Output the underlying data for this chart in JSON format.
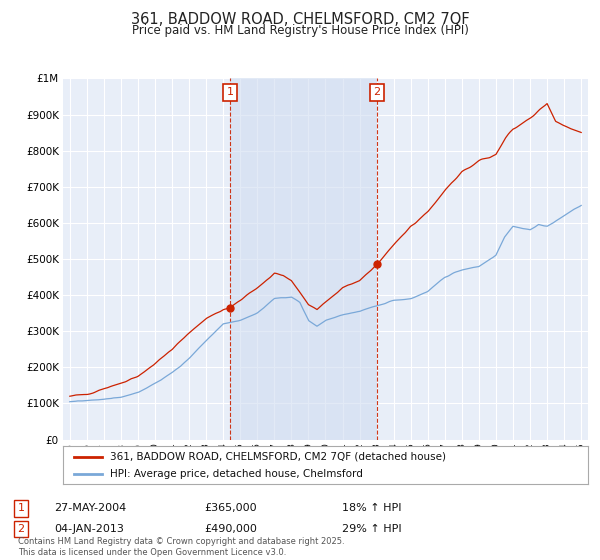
{
  "title": "361, BADDOW ROAD, CHELMSFORD, CM2 7QF",
  "subtitle": "Price paid vs. HM Land Registry's House Price Index (HPI)",
  "background_color": "#ffffff",
  "plot_bg_color": "#e8eef8",
  "grid_color": "#ffffff",
  "shade_color": "#d0dcf0",
  "red_color": "#cc2200",
  "blue_color": "#7aa8d8",
  "marker1_date_label": "27-MAY-2004",
  "marker1_price": "£365,000",
  "marker1_hpi": "18% ↑ HPI",
  "marker2_date_label": "04-JAN-2013",
  "marker2_price": "£490,000",
  "marker2_hpi": "29% ↑ HPI",
  "legend_red": "361, BADDOW ROAD, CHELMSFORD, CM2 7QF (detached house)",
  "legend_blue": "HPI: Average price, detached house, Chelmsford",
  "footer": "Contains HM Land Registry data © Crown copyright and database right 2025.\nThis data is licensed under the Open Government Licence v3.0.",
  "ylim": [
    0,
    1000000
  ],
  "yticks": [
    0,
    100000,
    200000,
    300000,
    400000,
    500000,
    600000,
    700000,
    800000,
    900000,
    1000000
  ],
  "ytick_labels": [
    "£0",
    "£100K",
    "£200K",
    "£300K",
    "£400K",
    "£500K",
    "£600K",
    "£700K",
    "£800K",
    "£900K",
    "£1M"
  ],
  "x_start_year": 1995,
  "x_end_year": 2025,
  "marker1_year": 2004.4,
  "marker2_year": 2013.0,
  "marker1_price_val": 365000,
  "marker2_price_val": 490000,
  "hpi_x": [
    1995,
    1996,
    1997,
    1998,
    1999,
    2000,
    2001,
    2002,
    2003,
    2004,
    2005,
    2006,
    2007,
    2008,
    2008.5,
    2009,
    2009.5,
    2010,
    2011,
    2012,
    2013,
    2014,
    2015,
    2016,
    2017,
    2018,
    2019,
    2020,
    2020.5,
    2021,
    2022,
    2022.5,
    2023,
    2024,
    2025
  ],
  "hpi_y": [
    105000,
    108000,
    112000,
    118000,
    130000,
    155000,
    185000,
    225000,
    275000,
    320000,
    330000,
    350000,
    390000,
    395000,
    380000,
    330000,
    315000,
    330000,
    345000,
    355000,
    370000,
    385000,
    390000,
    410000,
    450000,
    470000,
    480000,
    510000,
    560000,
    590000,
    580000,
    595000,
    590000,
    620000,
    650000
  ],
  "prop_x": [
    1995,
    1996,
    1997,
    1998,
    1999,
    2000,
    2001,
    2002,
    2003,
    2004,
    2004.4,
    2005,
    2006,
    2007,
    2007.5,
    2008,
    2009,
    2009.5,
    2010,
    2011,
    2012,
    2013,
    2013.1,
    2014,
    2015,
    2016,
    2017,
    2018,
    2019,
    2020,
    2020.5,
    2021,
    2022,
    2022.5,
    2023,
    2023.5,
    2024,
    2024.5,
    2025
  ],
  "prop_y": [
    120000,
    125000,
    140000,
    155000,
    175000,
    210000,
    250000,
    295000,
    335000,
    360000,
    365000,
    385000,
    420000,
    460000,
    455000,
    440000,
    375000,
    360000,
    380000,
    420000,
    440000,
    485000,
    490000,
    540000,
    590000,
    630000,
    690000,
    740000,
    770000,
    790000,
    830000,
    860000,
    890000,
    910000,
    930000,
    880000,
    870000,
    860000,
    850000
  ]
}
